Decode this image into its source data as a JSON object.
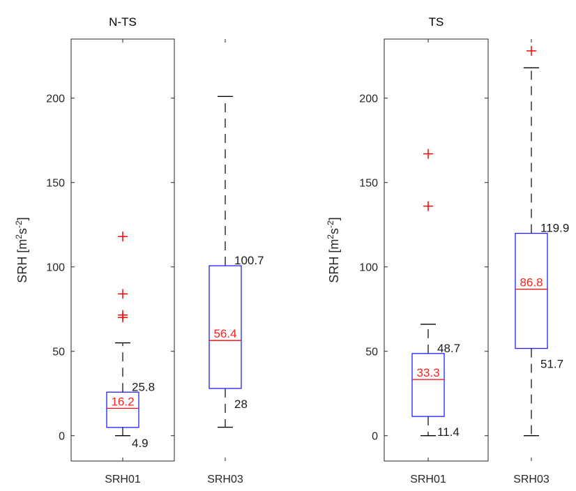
{
  "colors": {
    "box": "#1f1fff",
    "median": "#ff0000",
    "outlier": "#ff0000",
    "whisker": "#000000",
    "annotation_black": "#1a1a1a",
    "annotation_red": "#ff2020"
  },
  "chart_data": [
    {
      "type": "box",
      "title": "N-TS",
      "ylabel": "SRH [m²s⁻²]",
      "ylim": [
        -15,
        235
      ],
      "yticks": [
        "0",
        "50",
        "100",
        "150",
        "200"
      ],
      "categories": [
        "SRH01",
        "SRH03"
      ],
      "boxes": [
        {
          "category": "SRH01",
          "whisker_low": 0,
          "q1": 4.9,
          "median": 16.2,
          "q3": 25.8,
          "whisker_high": 55,
          "outliers": [
            70,
            71.5,
            84,
            118
          ],
          "labels": {
            "q3": "25.8",
            "median": "16.2",
            "q1": "4.9"
          }
        },
        {
          "category": "SRH03",
          "whisker_low": 5,
          "q1": 28,
          "median": 56.4,
          "q3": 100.7,
          "whisker_high": 201,
          "outliers": [],
          "labels": {
            "q3": "100.7",
            "median": "56.4",
            "q1": "28"
          }
        }
      ]
    },
    {
      "type": "box",
      "title": "TS",
      "ylabel": "SRH [m²s⁻²]",
      "ylim": [
        -15,
        235
      ],
      "yticks": [
        "0",
        "50",
        "100",
        "150",
        "200"
      ],
      "categories": [
        "SRH01",
        "SRH03"
      ],
      "boxes": [
        {
          "category": "SRH01",
          "whisker_low": 0,
          "q1": 11.4,
          "median": 33.3,
          "q3": 48.7,
          "whisker_high": 66,
          "outliers": [
            136,
            167
          ],
          "labels": {
            "q3": "48.7",
            "median": "33.3",
            "q1": "11.4"
          }
        },
        {
          "category": "SRH03",
          "whisker_low": 0,
          "q1": 51.7,
          "median": 86.8,
          "q3": 119.9,
          "whisker_high": 218,
          "outliers": [
            228
          ],
          "labels": {
            "q3": "119.9",
            "median": "86.8",
            "q1": "51.7"
          }
        }
      ]
    }
  ]
}
